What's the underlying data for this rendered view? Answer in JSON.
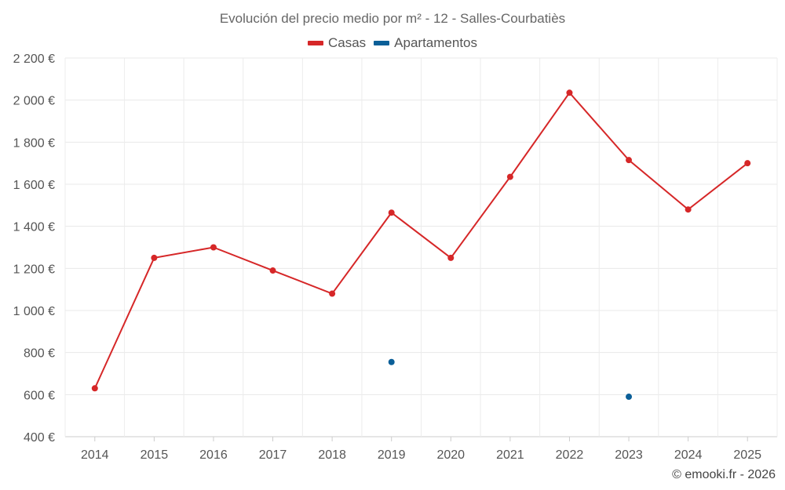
{
  "chart_data": {
    "type": "line",
    "title": "Evolución del precio medio por m² - 12 - Salles-Courbatiès",
    "categories": [
      "2014",
      "2015",
      "2016",
      "2017",
      "2018",
      "2019",
      "2020",
      "2021",
      "2022",
      "2023",
      "2024",
      "2025"
    ],
    "y_ticks": [
      400,
      600,
      800,
      1000,
      1200,
      1400,
      1600,
      1800,
      2000,
      2200
    ],
    "y_tick_labels": [
      "400 €",
      "600 €",
      "800 €",
      "1 000 €",
      "1 200 €",
      "1 400 €",
      "1 600 €",
      "1 800 €",
      "2 000 €",
      "2 200 €"
    ],
    "ylim": [
      400,
      2200
    ],
    "grid": true,
    "legend_position": "top-center",
    "series": [
      {
        "name": "Casas",
        "color": "#d62728",
        "line": true,
        "values": [
          630,
          1250,
          1300,
          1190,
          1080,
          1465,
          1250,
          1635,
          2035,
          1715,
          1480,
          1700
        ]
      },
      {
        "name": "Apartamentos",
        "color": "#0b5f98",
        "line": false,
        "values": [
          null,
          null,
          null,
          null,
          null,
          755,
          null,
          null,
          null,
          590,
          null,
          null
        ]
      }
    ]
  },
  "footer": "© emooki.fr - 2026"
}
